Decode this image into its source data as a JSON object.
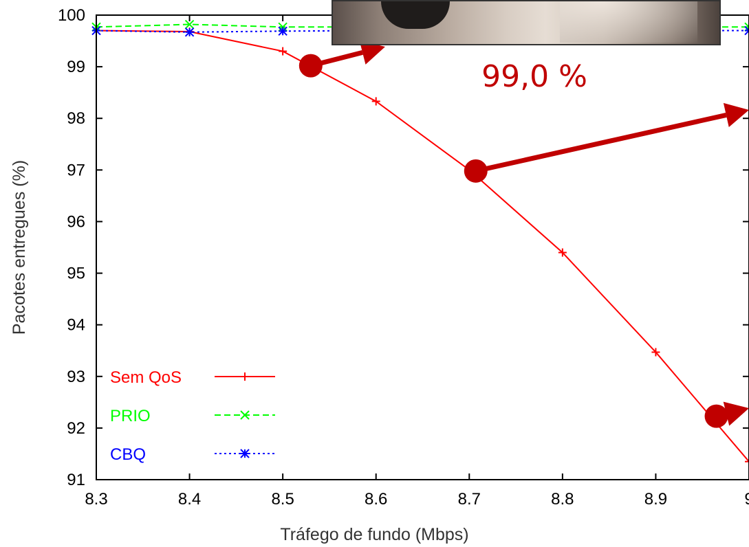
{
  "chart_data": {
    "type": "line",
    "xlabel": "Tráfego de fundo (Mbps)",
    "ylabel": "Pacotes entregues (%)",
    "xlim": [
      8.3,
      9.0
    ],
    "ylim": [
      91,
      100
    ],
    "x_ticks": [
      "8.3",
      "8.4",
      "8.5",
      "8.6",
      "8.7",
      "8.8",
      "8.9",
      "9"
    ],
    "y_ticks": [
      "91",
      "92",
      "93",
      "94",
      "95",
      "96",
      "97",
      "98",
      "99",
      "100"
    ],
    "legend_position": "bottom-left",
    "series": [
      {
        "name": "Sem QoS",
        "color": "#ff0000",
        "marker": "+",
        "dash": "solid",
        "x": [
          8.3,
          8.4,
          8.5,
          8.6,
          8.7,
          8.8,
          8.9,
          9.0
        ],
        "y": [
          99.7,
          99.68,
          99.3,
          98.33,
          97.0,
          95.4,
          93.47,
          91.35
        ]
      },
      {
        "name": "PRIO",
        "color": "#00ff00",
        "marker": "x",
        "dash": "dashed",
        "x": [
          8.3,
          8.4,
          8.5,
          8.6,
          8.7,
          8.8,
          8.9,
          9.0
        ],
        "y": [
          99.77,
          99.82,
          99.77,
          99.77,
          99.77,
          99.77,
          99.77,
          99.77
        ]
      },
      {
        "name": "CBQ",
        "color": "#0000ff",
        "marker": "*",
        "dash": "dotted",
        "x": [
          8.3,
          8.4,
          8.5,
          8.6,
          8.7,
          8.8,
          8.9,
          9.0
        ],
        "y": [
          99.7,
          99.67,
          99.69,
          99.7,
          99.7,
          99.7,
          99.7,
          99.7
        ]
      }
    ],
    "annotation": {
      "text": "99,0 %",
      "color": "#c00000",
      "callout_points": [
        {
          "x": 8.53,
          "y": 99.02
        },
        {
          "x": 8.707,
          "y": 96.98
        },
        {
          "x": 8.965,
          "y": 92.23
        }
      ]
    }
  }
}
